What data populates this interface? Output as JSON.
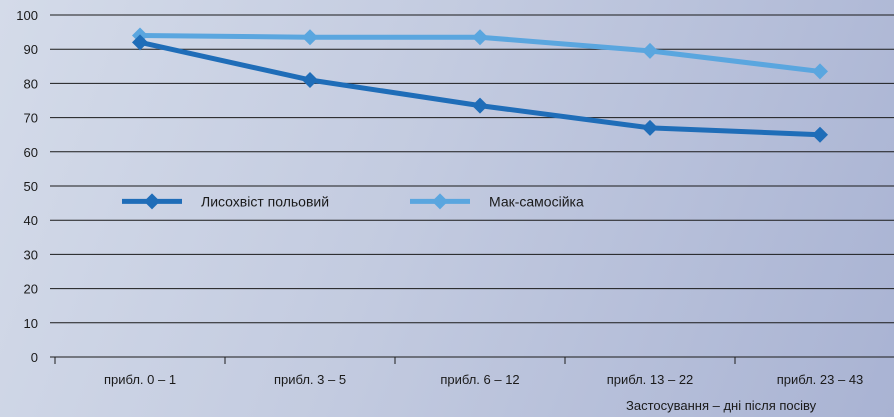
{
  "chart_data": {
    "type": "line",
    "categories": [
      "прибл. 0 – 1",
      "прибл. 3 – 5",
      "прибл. 6 – 12",
      "прибл. 13 – 22",
      "прибл. 23 – 43"
    ],
    "series": [
      {
        "name": "Лисохвіст польовий",
        "values": [
          92,
          81,
          73.5,
          67,
          65
        ],
        "color": "#1f6db8"
      },
      {
        "name": "Мак-самосійка",
        "values": [
          94,
          93.5,
          93.5,
          89.5,
          83.5
        ],
        "color": "#5aa6df"
      }
    ],
    "y_ticks": [
      "0",
      "10",
      "20",
      "30",
      "40",
      "50",
      "60",
      "70",
      "80",
      "90",
      "100"
    ],
    "xlabel": "Застосування – дні після посіву",
    "ylim": [
      0,
      100
    ],
    "grid": true,
    "legend_position": "middle-left"
  }
}
